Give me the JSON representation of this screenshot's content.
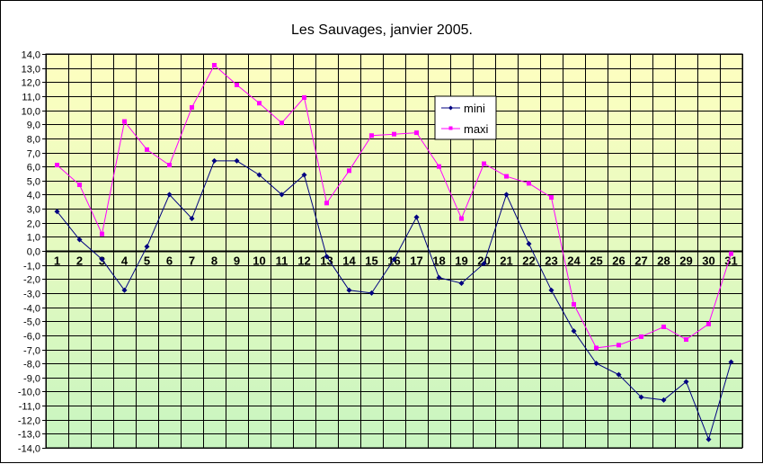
{
  "chart_data": {
    "type": "line",
    "title": "Les Sauvages, janvier 2005.",
    "xlabel": "",
    "ylabel": "",
    "ylim": [
      -14,
      14
    ],
    "y_step": 1,
    "grid": true,
    "legend_position": "top-center",
    "categories": [
      "1",
      "2",
      "3",
      "4",
      "5",
      "6",
      "7",
      "8",
      "9",
      "10",
      "11",
      "12",
      "13",
      "14",
      "15",
      "16",
      "17",
      "18",
      "19",
      "20",
      "21",
      "22",
      "23",
      "24",
      "25",
      "26",
      "27",
      "28",
      "29",
      "30",
      "31"
    ],
    "series": [
      {
        "name": "mini",
        "color": "#000080",
        "marker": "diamond",
        "values": [
          2.8,
          0.8,
          -0.6,
          -2.8,
          0.3,
          4.0,
          2.3,
          6.4,
          6.4,
          5.4,
          4.0,
          5.4,
          -0.4,
          -2.8,
          -3.0,
          -0.6,
          2.4,
          -1.9,
          -2.3,
          -0.9,
          4.0,
          0.5,
          -2.8,
          -5.7,
          -8.0,
          -8.8,
          -10.4,
          -10.6,
          -9.3,
          -13.4,
          -7.9
        ]
      },
      {
        "name": "maxi",
        "color": "#ff00ff",
        "marker": "square",
        "values": [
          6.1,
          4.7,
          1.2,
          9.2,
          7.2,
          6.1,
          10.2,
          13.2,
          11.8,
          10.5,
          9.1,
          10.9,
          3.4,
          5.7,
          8.2,
          8.3,
          8.4,
          6.0,
          2.3,
          6.2,
          5.3,
          4.8,
          3.8,
          -3.8,
          -6.9,
          -6.7,
          -6.1,
          -5.4,
          -6.3,
          -5.2,
          -0.2
        ]
      }
    ],
    "y_tick_labels": [
      "14,0",
      "13,0",
      "12,0",
      "11,0",
      "10,0",
      "9,0",
      "8,0",
      "7,0",
      "6,0",
      "5,0",
      "4,0",
      "3,0",
      "2,0",
      "1,0",
      "0,0",
      "-1,0",
      "-2,0",
      "-3,0",
      "-4,0",
      "-5,0",
      "-6,0",
      "-7,0",
      "-8,0",
      "-9,0",
      "-10,0",
      "-11,0",
      "-12,0",
      "-13,0",
      "-14,0"
    ],
    "background_gradient": {
      "top": "#ffffc0",
      "bottom": "#c8f5c0"
    }
  }
}
